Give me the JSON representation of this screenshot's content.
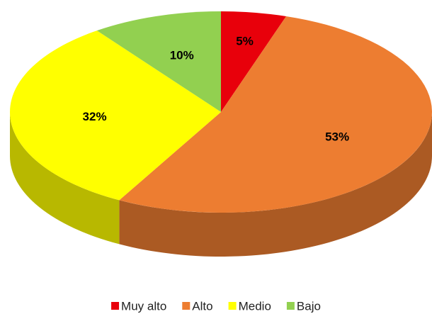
{
  "chart_data": {
    "type": "pie",
    "categories": [
      "Muy alto",
      "Alto",
      "Medio",
      "Bajo"
    ],
    "values": [
      5,
      53,
      32,
      10
    ],
    "value_labels": [
      "5%",
      "53%",
      "32%",
      "10%"
    ],
    "colors": [
      "#e8000b",
      "#ed7d31",
      "#ffff00",
      "#92d050"
    ],
    "legend": "bottom"
  }
}
